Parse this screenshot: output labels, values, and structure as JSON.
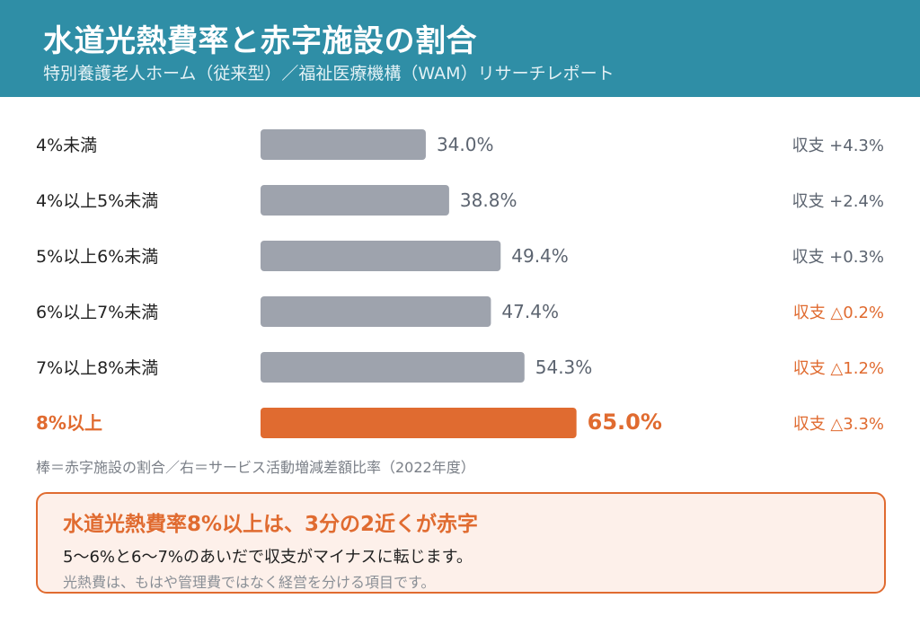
{
  "header": {
    "title": "水道光熱費率と赤字施設の割合",
    "subtitle": "特別養護老人ホーム（従来型）／福祉医療機構（WAM）リサーチレポート"
  },
  "colors": {
    "header_bg": "#2f8ea6",
    "bar_default": "#9ea3ad",
    "bar_highlight": "#e06b30",
    "negative_text": "#e06b30"
  },
  "chart_data": {
    "type": "bar",
    "orientation": "horizontal",
    "categories": [
      "4%未満",
      "4%以上5%未満",
      "5%以上6%未満",
      "6%以上7%未満",
      "7%以上8%未満",
      "8%以上"
    ],
    "values": [
      34.0,
      38.8,
      49.4,
      47.4,
      54.3,
      65.0
    ],
    "value_labels": [
      "34.0%",
      "38.8%",
      "49.4%",
      "47.4%",
      "54.3%",
      "65.0%"
    ],
    "secondary_labels": [
      "収支 +4.3%",
      "収支 +2.4%",
      "収支 +0.3%",
      "収支 △0.2%",
      "収支 △1.2%",
      "収支 △3.3%"
    ],
    "secondary_negative": [
      false,
      false,
      false,
      true,
      true,
      true
    ],
    "highlight_index": 5,
    "xlim": [
      0,
      100
    ],
    "grid": false,
    "legend": "none"
  },
  "footnote": "棒＝赤字施設の割合／右＝サービス活動増減差額比率（2022年度）",
  "callout": {
    "title": "水道光熱費率8%以上は、3分の2近くが赤字",
    "line1": "5〜6%と6〜7%のあいだで収支がマイナスに転じます。",
    "line2": "光熱費は、もはや管理費ではなく経営を分ける項目です。"
  }
}
